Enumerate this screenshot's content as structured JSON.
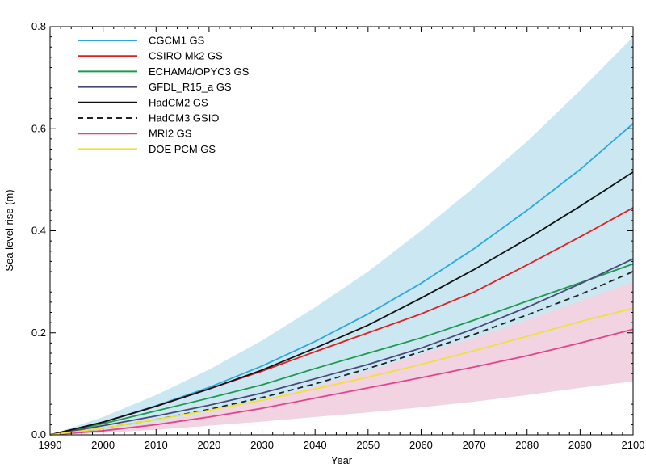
{
  "chart_data": {
    "type": "line",
    "title": "",
    "xlabel": "Year",
    "ylabel": "Sea level rise (m)",
    "xlim": [
      1990,
      2100
    ],
    "ylim": [
      0,
      0.8
    ],
    "x_ticks": [
      "1990",
      "2000",
      "2010",
      "2020",
      "2030",
      "2040",
      "2050",
      "2060",
      "2070",
      "2080",
      "2090",
      "2100"
    ],
    "y_ticks": [
      "0.0",
      "0.2",
      "0.4",
      "0.6",
      "0.8"
    ],
    "legend_position": "top-left",
    "grid": false,
    "x": [
      1990,
      2000,
      2010,
      2020,
      2030,
      2040,
      2050,
      2060,
      2070,
      2080,
      2090,
      2100
    ],
    "bands": [
      {
        "color": "#cbe8f2",
        "upper": [
          0,
          0.035,
          0.078,
          0.128,
          0.185,
          0.25,
          0.32,
          0.4,
          0.485,
          0.575,
          0.675,
          0.78
        ],
        "lower": [
          0,
          0.008,
          0.02,
          0.037,
          0.058,
          0.082,
          0.108,
          0.138,
          0.17,
          0.205,
          0.245,
          0.3
        ]
      },
      {
        "color": "#f1d3e1",
        "upper": [
          0,
          0.01,
          0.025,
          0.045,
          0.068,
          0.095,
          0.125,
          0.158,
          0.19,
          0.225,
          0.262,
          0.3
        ],
        "lower": [
          0,
          0.004,
          0.01,
          0.018,
          0.026,
          0.035,
          0.044,
          0.054,
          0.065,
          0.078,
          0.092,
          0.105
        ]
      }
    ],
    "series": [
      {
        "name": "CGCM1 GS",
        "color": "#29a9e0",
        "dash": "",
        "values": [
          0,
          0.025,
          0.057,
          0.093,
          0.135,
          0.183,
          0.237,
          0.297,
          0.365,
          0.44,
          0.52,
          0.61
        ]
      },
      {
        "name": "CSIRO Mk2 GS",
        "color": "#e02020",
        "dash": "",
        "values": [
          0,
          0.025,
          0.056,
          0.09,
          0.125,
          0.163,
          0.2,
          0.237,
          0.28,
          0.333,
          0.388,
          0.445
        ]
      },
      {
        "name": "ECHAM4/OPYC3 GS",
        "color": "#1e9a50",
        "dash": "",
        "values": [
          0,
          0.022,
          0.047,
          0.072,
          0.098,
          0.13,
          0.16,
          0.19,
          0.225,
          0.262,
          0.298,
          0.335
        ]
      },
      {
        "name": "GFDL_R15_a GS",
        "color": "#4a4a78",
        "dash": "",
        "values": [
          0,
          0.018,
          0.037,
          0.058,
          0.082,
          0.11,
          0.138,
          0.17,
          0.208,
          0.25,
          0.296,
          0.345
        ]
      },
      {
        "name": "HadCM2 GS",
        "color": "#111111",
        "dash": "",
        "values": [
          0,
          0.025,
          0.056,
          0.09,
          0.127,
          0.17,
          0.215,
          0.268,
          0.324,
          0.384,
          0.448,
          0.515
        ]
      },
      {
        "name": "HadCM3 GSIO",
        "color": "#222222",
        "dash": "7,5",
        "values": [
          0,
          0.013,
          0.03,
          0.05,
          0.073,
          0.1,
          0.13,
          0.163,
          0.197,
          0.235,
          0.275,
          0.32
        ]
      },
      {
        "name": "MRI2 GS",
        "color": "#e0448c",
        "dash": "",
        "values": [
          0,
          0.008,
          0.02,
          0.035,
          0.052,
          0.072,
          0.092,
          0.112,
          0.133,
          0.155,
          0.18,
          0.207
        ]
      },
      {
        "name": "DOE PCM GS",
        "color": "#f0e03c",
        "dash": "",
        "values": [
          0,
          0.013,
          0.03,
          0.048,
          0.068,
          0.09,
          0.113,
          0.138,
          0.165,
          0.193,
          0.222,
          0.248
        ]
      }
    ]
  }
}
